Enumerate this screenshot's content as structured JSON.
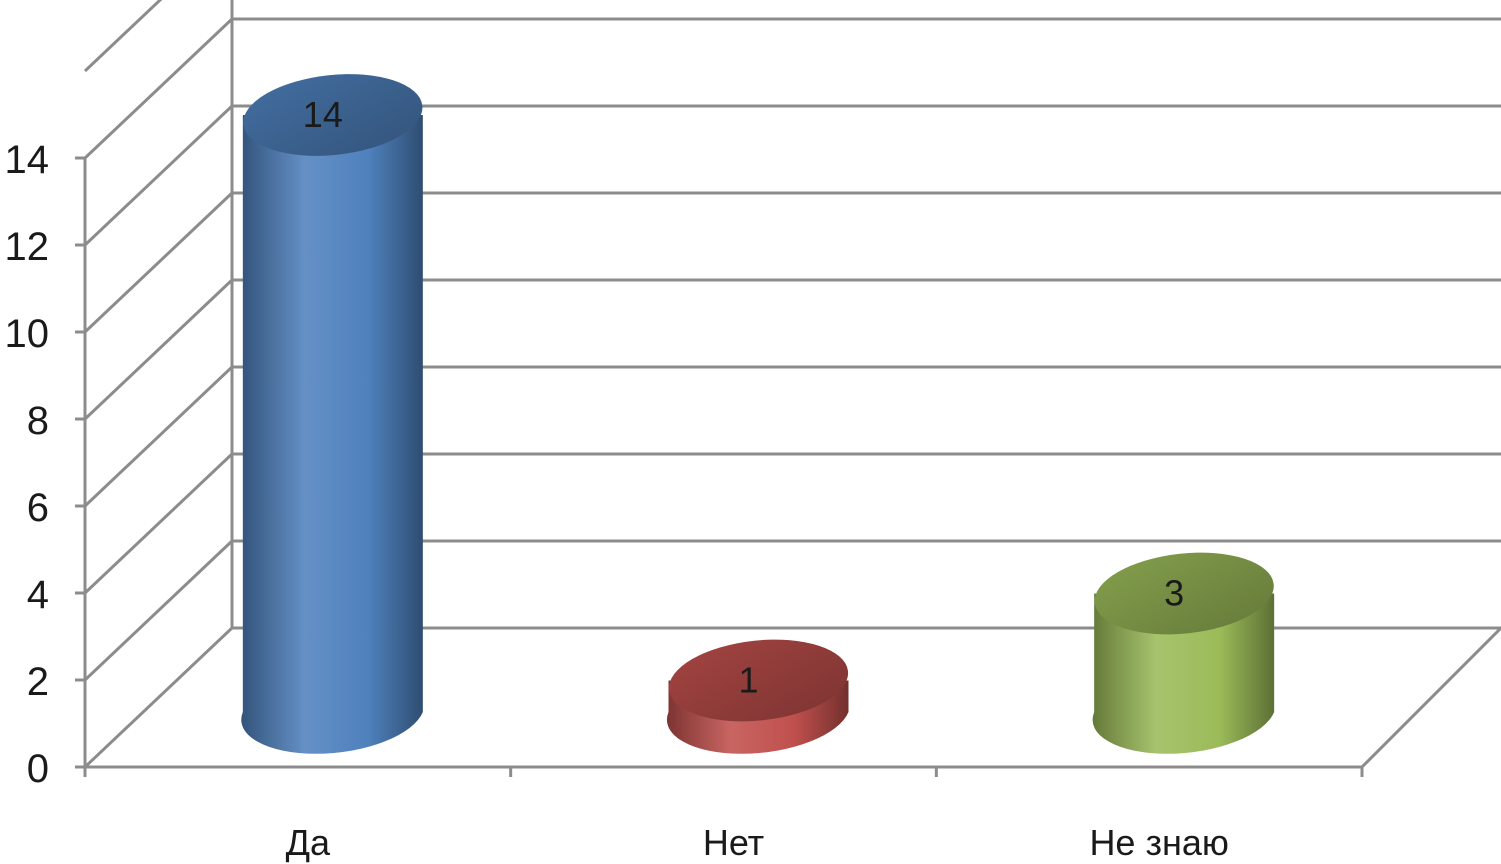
{
  "chart_data": {
    "type": "bar",
    "style": "3d-cylinder",
    "categories": [
      "Да",
      "Нет",
      "Не знаю"
    ],
    "values": [
      14,
      1,
      3
    ],
    "data_labels": [
      "14",
      "1",
      "3"
    ],
    "colors": [
      "#4f81bd",
      "#c0504d",
      "#9bbb59"
    ],
    "ylim": [
      0,
      14
    ],
    "yticks": [
      0,
      2,
      4,
      6,
      8,
      10,
      12,
      14
    ],
    "ytick_labels": [
      "0",
      "2",
      "4",
      "6",
      "8",
      "10",
      "12",
      "14"
    ],
    "grid": true,
    "legend": "none",
    "title": "",
    "xlabel": "",
    "ylabel": ""
  }
}
